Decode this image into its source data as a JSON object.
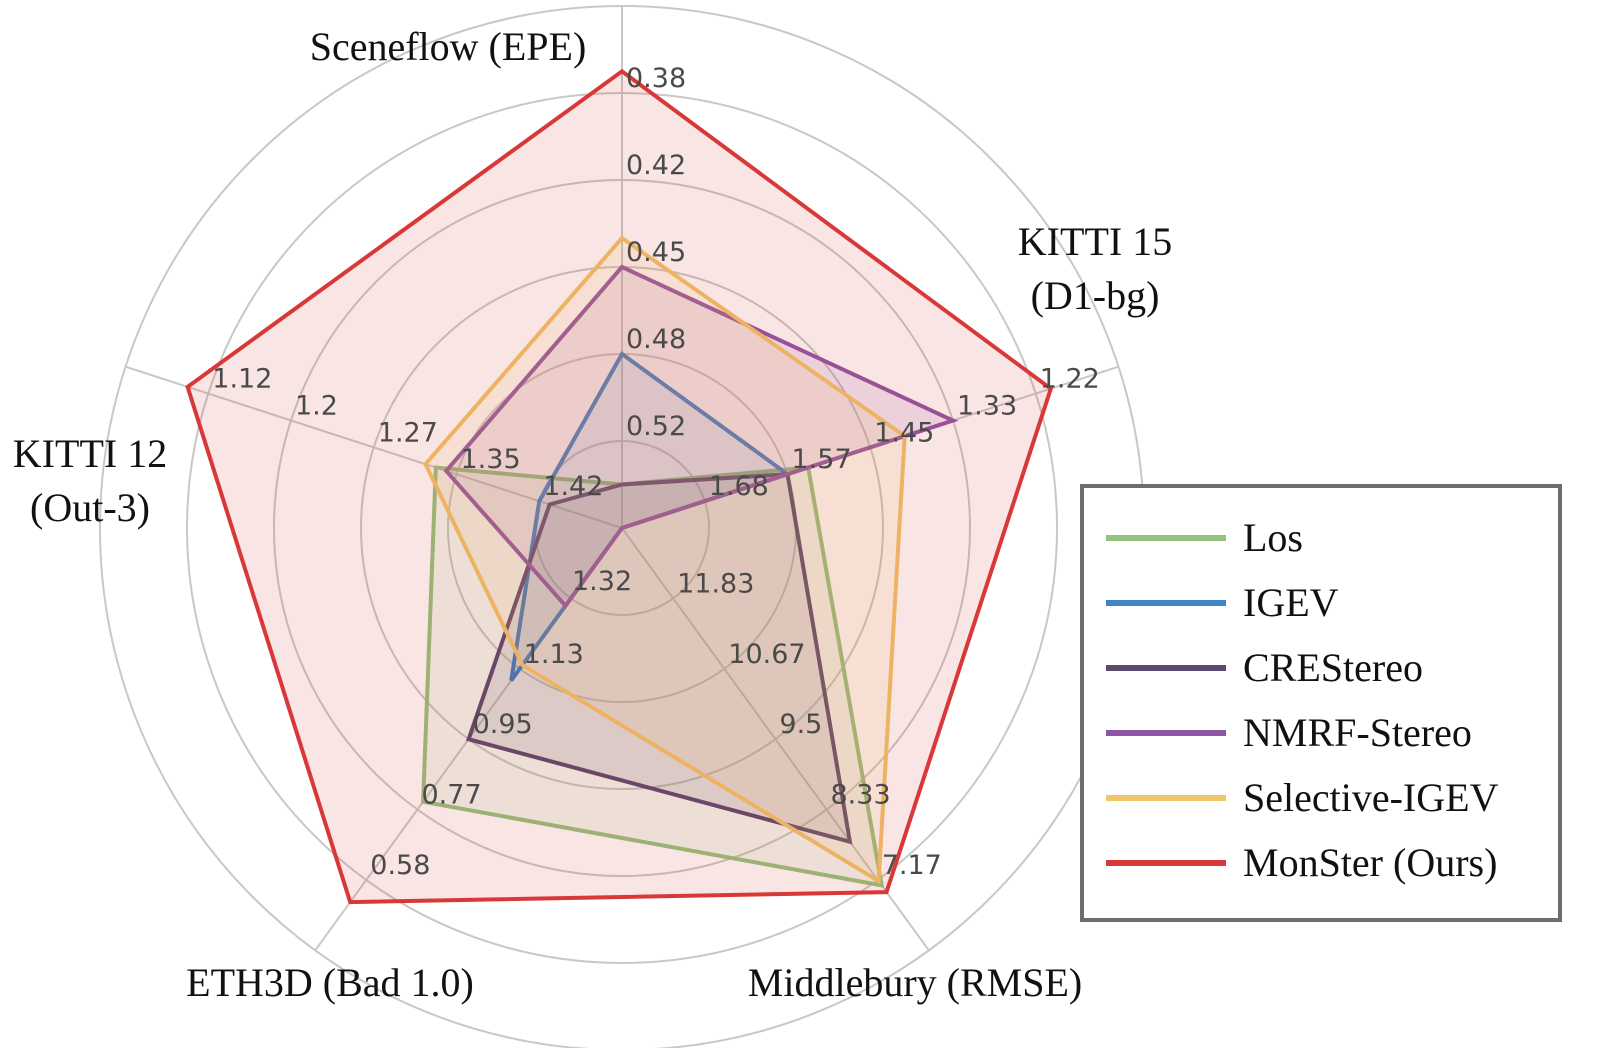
{
  "chart_data": {
    "type": "radar",
    "axes": [
      {
        "label_lines": [
          "Sceneflow (EPE)"
        ],
        "ticks": [
          "0.52",
          "0.48",
          "0.45",
          "0.42",
          "0.38"
        ]
      },
      {
        "label_lines": [
          "KITTI 15",
          "(D1-bg)"
        ],
        "ticks": [
          "1.68",
          "1.57",
          "1.45",
          "1.33",
          "1.22"
        ]
      },
      {
        "label_lines": [
          "Middlebury (RMSE)"
        ],
        "ticks": [
          "11.83",
          "10.67",
          "9.5",
          "8.33",
          "7.17"
        ]
      },
      {
        "label_lines": [
          "ETH3D (Bad 1.0)"
        ],
        "ticks": [
          "1.13",
          "0.95",
          "0.77",
          "0.58"
        ]
      },
      {
        "label_lines": [
          "KITTI 12",
          "(Out-3)"
        ],
        "ticks": [
          "1.42",
          "1.35",
          "1.27",
          "1.2",
          "1.12"
        ]
      }
    ],
    "center_tick": "1.32",
    "rings": 6,
    "series": [
      {
        "name": "Los",
        "color": "#93c47d",
        "values": [
          0.56,
          1.54,
          7.08,
          0.79,
          1.33
        ]
      },
      {
        "name": "IGEV",
        "color": "#3d85c6",
        "values": [
          0.48,
          1.57,
          13.0,
          1.1,
          1.42
        ]
      },
      {
        "name": "CREStereo",
        "color": "#5a4a6e",
        "values": [
          0.56,
          1.57,
          7.8,
          0.95,
          1.45
        ]
      },
      {
        "name": "NMRF-Stereo",
        "color": "#8e55a5",
        "values": [
          0.45,
          1.33,
          13.0,
          1.32,
          1.34
        ]
      },
      {
        "name": "Selective-IGEV",
        "color": "#f1c66a",
        "values": [
          0.44,
          1.4,
          7.15,
          1.16,
          1.32
        ]
      },
      {
        "name": "MonSter (Ours)",
        "color": "#d93838",
        "values": [
          0.37,
          1.2,
          6.97,
          0.52,
          1.1
        ]
      }
    ]
  }
}
